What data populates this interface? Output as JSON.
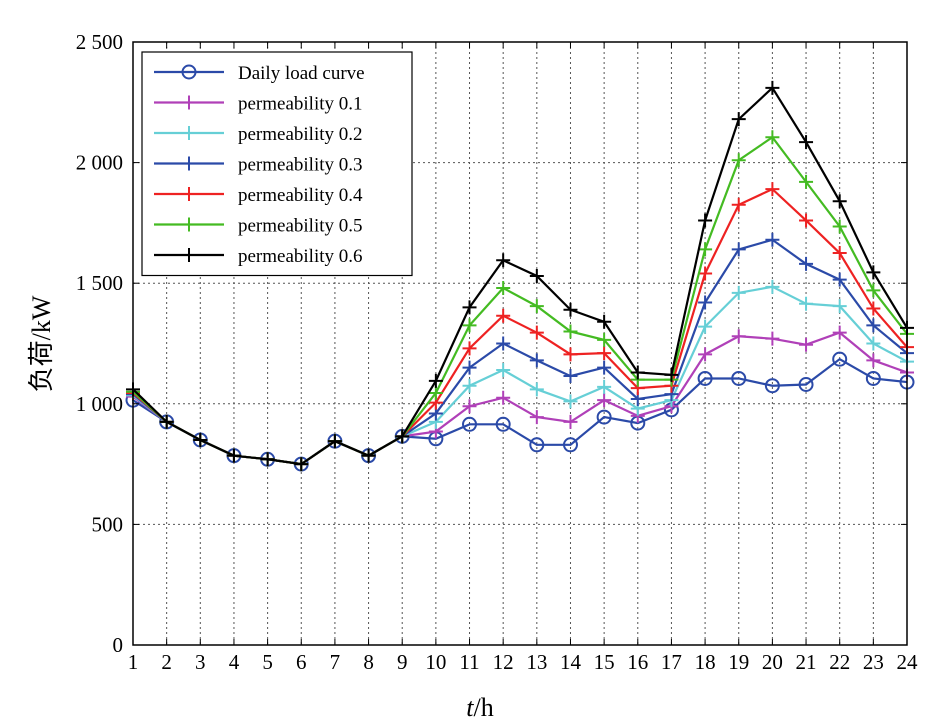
{
  "chart_data": {
    "type": "line",
    "xlabel_italic": "t",
    "xlabel_rest": "/h",
    "ylabel": "负荷/kW",
    "xlim": [
      1,
      24
    ],
    "ylim": [
      0,
      2500
    ],
    "x_ticks": [
      "1",
      "2",
      "3",
      "4",
      "5",
      "6",
      "7",
      "8",
      "9",
      "10",
      "11",
      "12",
      "13",
      "14",
      "15",
      "16",
      "17",
      "18",
      "19",
      "20",
      "21",
      "22",
      "23",
      "24"
    ],
    "y_ticks": [
      "0",
      "500",
      "1 000",
      "1 500",
      "2 000",
      "2 500"
    ],
    "y_tick_values": [
      0,
      500,
      1000,
      1500,
      2000,
      2500
    ],
    "grid": true,
    "legend_position": "top-left",
    "x": [
      1,
      2,
      3,
      4,
      5,
      6,
      7,
      8,
      9,
      10,
      11,
      12,
      13,
      14,
      15,
      16,
      17,
      18,
      19,
      20,
      21,
      22,
      23,
      24
    ],
    "series": [
      {
        "name": "Daily load curve",
        "color": "#2b4aa8",
        "marker": "circle",
        "values": [
          1015,
          925,
          850,
          785,
          770,
          750,
          845,
          785,
          865,
          855,
          915,
          915,
          830,
          830,
          945,
          920,
          975,
          1105,
          1105,
          1075,
          1080,
          1185,
          1105,
          1090
        ]
      },
      {
        "name": "permeability 0.1",
        "color": "#b040b8",
        "marker": "plus",
        "values": [
          1030,
          925,
          850,
          785,
          770,
          750,
          845,
          785,
          865,
          885,
          990,
          1025,
          945,
          925,
          1015,
          950,
          990,
          1205,
          1280,
          1270,
          1245,
          1295,
          1180,
          1130
        ]
      },
      {
        "name": "permeability 0.2",
        "color": "#66cfd6",
        "marker": "plus",
        "values": [
          1035,
          925,
          850,
          785,
          770,
          750,
          845,
          785,
          865,
          925,
          1075,
          1140,
          1060,
          1010,
          1070,
          980,
          1015,
          1320,
          1460,
          1485,
          1415,
          1405,
          1250,
          1175
        ]
      },
      {
        "name": "permeability 0.3",
        "color": "#2b4aa8",
        "marker": "plus",
        "values": [
          1040,
          925,
          850,
          785,
          770,
          750,
          845,
          785,
          865,
          960,
          1150,
          1250,
          1180,
          1115,
          1150,
          1020,
          1040,
          1420,
          1640,
          1680,
          1580,
          1515,
          1325,
          1210
        ]
      },
      {
        "name": "permeability 0.4",
        "color": "#ee2222",
        "marker": "plus",
        "values": [
          1045,
          925,
          850,
          785,
          770,
          750,
          845,
          785,
          865,
          1005,
          1230,
          1365,
          1295,
          1205,
          1210,
          1065,
          1075,
          1540,
          1825,
          1890,
          1760,
          1625,
          1395,
          1235
        ]
      },
      {
        "name": "permeability 0.5",
        "color": "#44bb22",
        "marker": "plus",
        "values": [
          1050,
          925,
          850,
          785,
          770,
          750,
          845,
          785,
          865,
          1045,
          1325,
          1480,
          1405,
          1300,
          1265,
          1100,
          1100,
          1640,
          2010,
          2105,
          1920,
          1735,
          1470,
          1290
        ]
      },
      {
        "name": "permeability 0.6",
        "color": "#000000",
        "marker": "plus",
        "values": [
          1060,
          925,
          850,
          785,
          770,
          750,
          845,
          785,
          865,
          1095,
          1400,
          1595,
          1530,
          1390,
          1340,
          1130,
          1120,
          1760,
          2180,
          2310,
          2085,
          1840,
          1545,
          1315
        ]
      }
    ]
  }
}
